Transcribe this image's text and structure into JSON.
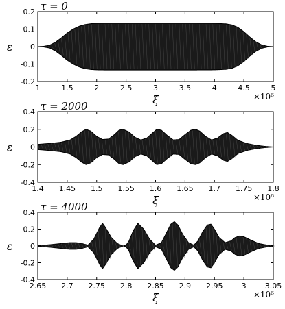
{
  "chart_data": [
    {
      "type": "area",
      "title": "τ = 0",
      "xlabel": "ξ",
      "ylabel": "ε",
      "x_multiplier": "×10⁶",
      "xlim": [
        1,
        5
      ],
      "ylim": [
        -0.2,
        0.2
      ],
      "xticks": [
        1,
        1.5,
        2,
        2.5,
        3,
        3.5,
        4,
        4.5,
        5
      ],
      "xtick_labels": [
        "1",
        "1.5",
        "2",
        "2.5",
        "3",
        "3.5",
        "4",
        "4.5",
        "5"
      ],
      "yticks": [
        -0.2,
        -0.1,
        0,
        0.1,
        0.2
      ],
      "ytick_labels": [
        "-0.2",
        "-0.1",
        "0",
        "0.1",
        "0.2"
      ],
      "fill_color": "#1a1a1a",
      "envelope": {
        "x": [
          1.0,
          1.1,
          1.2,
          1.3,
          1.4,
          1.5,
          1.6,
          1.7,
          1.8,
          1.9,
          2.0,
          2.2,
          2.5,
          3.0,
          3.5,
          4.0,
          4.2,
          4.3,
          4.4,
          4.5,
          4.6,
          4.7,
          4.8,
          4.9,
          5.0
        ],
        "amplitude": [
          0.0,
          0.002,
          0.008,
          0.025,
          0.05,
          0.078,
          0.1,
          0.116,
          0.126,
          0.131,
          0.133,
          0.134,
          0.134,
          0.134,
          0.134,
          0.133,
          0.13,
          0.124,
          0.11,
          0.085,
          0.055,
          0.028,
          0.01,
          0.002,
          0.0
        ]
      }
    },
    {
      "type": "area",
      "title": "τ = 2000",
      "xlabel": "ξ",
      "ylabel": "ε",
      "x_multiplier": "×10⁶",
      "xlim": [
        1.4,
        1.8
      ],
      "ylim": [
        -0.4,
        0.4
      ],
      "xticks": [
        1.4,
        1.45,
        1.5,
        1.55,
        1.6,
        1.65,
        1.7,
        1.75,
        1.8
      ],
      "xtick_labels": [
        "1.4",
        "1.45",
        "1.5",
        "1.55",
        "1.6",
        "1.65",
        "1.7",
        "1.75",
        "1.8"
      ],
      "yticks": [
        -0.4,
        -0.2,
        0,
        0.2,
        0.4
      ],
      "ytick_labels": [
        "-0.4",
        "-0.2",
        "0",
        "0.2",
        "0.4"
      ],
      "fill_color": "#1a1a1a",
      "envelope": {
        "x": [
          1.4,
          1.42,
          1.44,
          1.455,
          1.465,
          1.475,
          1.482,
          1.49,
          1.5,
          1.51,
          1.52,
          1.53,
          1.538,
          1.545,
          1.555,
          1.565,
          1.575,
          1.585,
          1.595,
          1.602,
          1.61,
          1.62,
          1.63,
          1.64,
          1.65,
          1.66,
          1.668,
          1.675,
          1.685,
          1.695,
          1.705,
          1.715,
          1.722,
          1.73,
          1.74,
          1.755,
          1.77,
          1.785,
          1.8
        ],
        "amplitude": [
          0.03,
          0.04,
          0.055,
          0.08,
          0.12,
          0.175,
          0.2,
          0.18,
          0.12,
          0.085,
          0.09,
          0.14,
          0.19,
          0.2,
          0.17,
          0.11,
          0.08,
          0.1,
          0.16,
          0.2,
          0.19,
          0.13,
          0.08,
          0.085,
          0.14,
          0.19,
          0.2,
          0.18,
          0.12,
          0.08,
          0.1,
          0.15,
          0.165,
          0.13,
          0.075,
          0.04,
          0.02,
          0.008,
          0.0
        ]
      }
    },
    {
      "type": "area",
      "title": "τ = 4000",
      "xlabel": "ξ",
      "ylabel": "ε",
      "x_multiplier": "×10⁶",
      "xlim": [
        2.65,
        3.05
      ],
      "ylim": [
        -0.4,
        0.4
      ],
      "xticks": [
        2.65,
        2.7,
        2.75,
        2.8,
        2.85,
        2.9,
        2.95,
        3,
        3.05
      ],
      "xtick_labels": [
        "2.65",
        "2.7",
        "2.75",
        "2.8",
        "2.85",
        "2.9",
        "2.95",
        "3",
        "3.05"
      ],
      "yticks": [
        -0.4,
        -0.2,
        0,
        0.2,
        0.4
      ],
      "ytick_labels": [
        "-0.4",
        "-0.2",
        "0",
        "0.2",
        "0.4"
      ],
      "fill_color": "#1a1a1a",
      "envelope": {
        "x": [
          2.65,
          2.67,
          2.69,
          2.705,
          2.715,
          2.725,
          2.735,
          2.745,
          2.755,
          2.76,
          2.765,
          2.775,
          2.785,
          2.795,
          2.8,
          2.805,
          2.812,
          2.82,
          2.83,
          2.84,
          2.85,
          2.86,
          2.868,
          2.876,
          2.882,
          2.888,
          2.896,
          2.906,
          2.915,
          2.922,
          2.93,
          2.938,
          2.944,
          2.95,
          2.958,
          2.968,
          2.978,
          2.985,
          2.993,
          3.0,
          3.012,
          3.025,
          3.04,
          3.05
        ],
        "amplitude": [
          0.005,
          0.015,
          0.03,
          0.04,
          0.04,
          0.03,
          0.01,
          0.08,
          0.22,
          0.27,
          0.22,
          0.1,
          0.03,
          0.0,
          0.01,
          0.06,
          0.18,
          0.27,
          0.2,
          0.08,
          0.01,
          0.04,
          0.15,
          0.26,
          0.29,
          0.25,
          0.14,
          0.04,
          0.01,
          0.06,
          0.17,
          0.25,
          0.26,
          0.2,
          0.1,
          0.04,
          0.06,
          0.1,
          0.12,
          0.11,
          0.07,
          0.03,
          0.01,
          0.005
        ]
      }
    }
  ]
}
